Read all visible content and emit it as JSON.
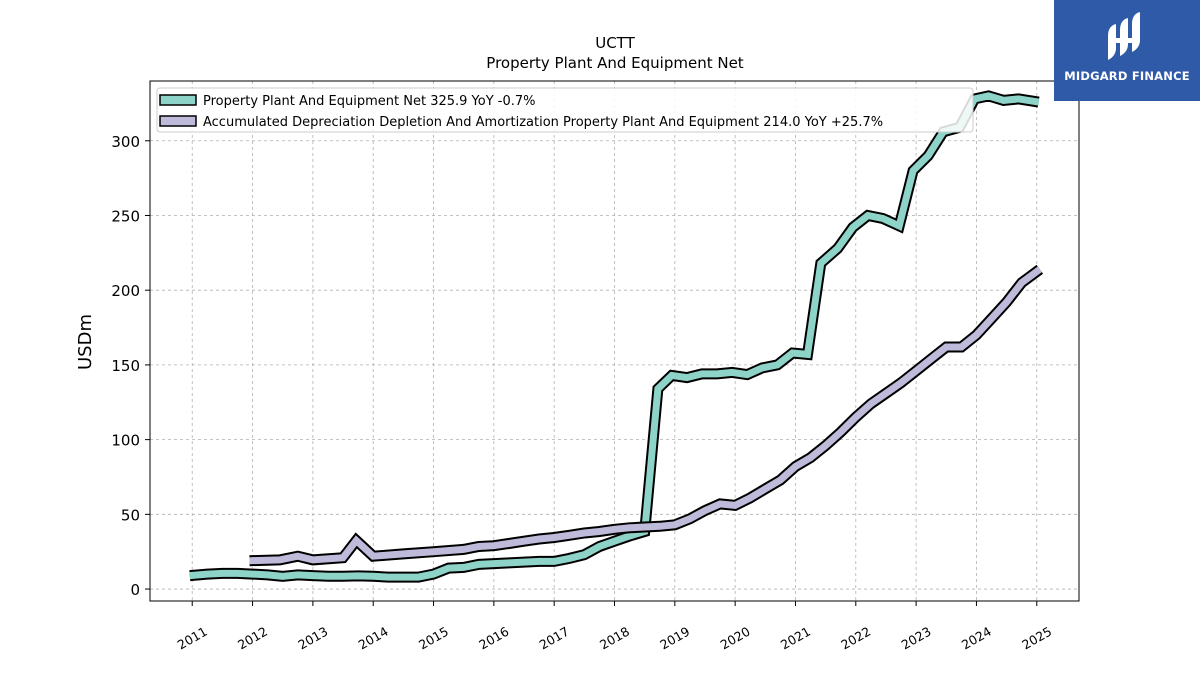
{
  "chart_data": {
    "type": "line",
    "title": "UCTT",
    "subtitle": "Property Plant And Equipment Net",
    "ylabel": "USDm",
    "xlabel": "",
    "ylim": [
      -8,
      340
    ],
    "xlim": [
      2010.3,
      2025.7
    ],
    "yticks": [
      0,
      50,
      100,
      150,
      200,
      250,
      300
    ],
    "xticks": [
      "2011",
      "2012",
      "2013",
      "2014",
      "2015",
      "2016",
      "2017",
      "2018",
      "2019",
      "2020",
      "2021",
      "2022",
      "2023",
      "2024",
      "2025"
    ],
    "grid": true,
    "legend_position": "top-left",
    "series": [
      {
        "name": "Property Plant And Equipment Net",
        "legend": "Property Plant And Equipment Net  325.9 YoY -0.7%",
        "color": "#8dd3c7",
        "points": [
          [
            2010.96,
            9
          ],
          [
            2011.25,
            10
          ],
          [
            2011.5,
            10.5
          ],
          [
            2011.75,
            10.5
          ],
          [
            2012.0,
            10
          ],
          [
            2012.25,
            9.5
          ],
          [
            2012.5,
            8.5
          ],
          [
            2012.75,
            9.5
          ],
          [
            2013.0,
            9
          ],
          [
            2013.25,
            8.5
          ],
          [
            2013.5,
            8.5
          ],
          [
            2013.75,
            8.8
          ],
          [
            2014.0,
            8.5
          ],
          [
            2014.25,
            8
          ],
          [
            2014.5,
            8
          ],
          [
            2014.75,
            8
          ],
          [
            2015.0,
            10
          ],
          [
            2015.25,
            14
          ],
          [
            2015.5,
            14.5
          ],
          [
            2015.75,
            16.5
          ],
          [
            2016.0,
            17
          ],
          [
            2016.25,
            17.5
          ],
          [
            2016.5,
            18
          ],
          [
            2016.75,
            18.5
          ],
          [
            2017.0,
            18.5
          ],
          [
            2017.25,
            20.5
          ],
          [
            2017.5,
            23
          ],
          [
            2017.75,
            28.5
          ],
          [
            2018.0,
            32
          ],
          [
            2018.25,
            35.5
          ],
          [
            2018.5,
            38.5
          ],
          [
            2018.72,
            134
          ],
          [
            2018.95,
            143
          ],
          [
            2019.2,
            141.5
          ],
          [
            2019.45,
            144
          ],
          [
            2019.7,
            144
          ],
          [
            2019.95,
            145
          ],
          [
            2020.2,
            143.5
          ],
          [
            2020.45,
            148
          ],
          [
            2020.7,
            150
          ],
          [
            2020.95,
            158
          ],
          [
            2021.2,
            157
          ],
          [
            2021.42,
            218
          ],
          [
            2021.7,
            228
          ],
          [
            2021.95,
            242
          ],
          [
            2022.2,
            250
          ],
          [
            2022.45,
            248
          ],
          [
            2022.72,
            243
          ],
          [
            2022.95,
            280
          ],
          [
            2023.2,
            290
          ],
          [
            2023.45,
            306
          ],
          [
            2023.72,
            309
          ],
          [
            2023.97,
            328
          ],
          [
            2024.2,
            330
          ],
          [
            2024.45,
            327
          ],
          [
            2024.7,
            328
          ],
          [
            2025.03,
            325.9
          ]
        ]
      },
      {
        "name": "Accumulated Depreciation Depletion And Amortization Property Plant And Equipment",
        "legend": "Accumulated Depreciation Depletion And Amortization Property Plant And Equipment  214.0 YoY +25.7%",
        "color": "#bebada",
        "points": [
          [
            2011.95,
            19
          ],
          [
            2012.45,
            19.5
          ],
          [
            2012.75,
            22
          ],
          [
            2013.0,
            19.5
          ],
          [
            2013.5,
            21
          ],
          [
            2013.72,
            32.5
          ],
          [
            2014.0,
            22
          ],
          [
            2014.5,
            23.5
          ],
          [
            2015.0,
            25
          ],
          [
            2015.5,
            26.5
          ],
          [
            2015.75,
            28.5
          ],
          [
            2016.0,
            29
          ],
          [
            2016.25,
            30.5
          ],
          [
            2016.5,
            32
          ],
          [
            2016.75,
            33.5
          ],
          [
            2017.0,
            34.5
          ],
          [
            2017.25,
            36
          ],
          [
            2017.5,
            37.5
          ],
          [
            2017.75,
            38.5
          ],
          [
            2018.0,
            40
          ],
          [
            2018.25,
            41
          ],
          [
            2018.5,
            41.5
          ],
          [
            2018.75,
            42
          ],
          [
            2019.0,
            43
          ],
          [
            2019.25,
            47
          ],
          [
            2019.5,
            52.5
          ],
          [
            2019.75,
            57
          ],
          [
            2020.0,
            56
          ],
          [
            2020.25,
            61
          ],
          [
            2020.5,
            67
          ],
          [
            2020.75,
            73
          ],
          [
            2021.0,
            82
          ],
          [
            2021.25,
            88
          ],
          [
            2021.5,
            96
          ],
          [
            2021.75,
            105
          ],
          [
            2022.0,
            115
          ],
          [
            2022.25,
            124
          ],
          [
            2022.5,
            131
          ],
          [
            2022.75,
            138
          ],
          [
            2023.0,
            146
          ],
          [
            2023.25,
            154
          ],
          [
            2023.5,
            162
          ],
          [
            2023.75,
            162
          ],
          [
            2024.0,
            170
          ],
          [
            2024.25,
            181
          ],
          [
            2024.5,
            192
          ],
          [
            2024.75,
            205
          ],
          [
            2025.05,
            214
          ]
        ]
      }
    ]
  },
  "logo": {
    "text": "MIDGARD FINANCE",
    "color": "#2f5aa8"
  }
}
